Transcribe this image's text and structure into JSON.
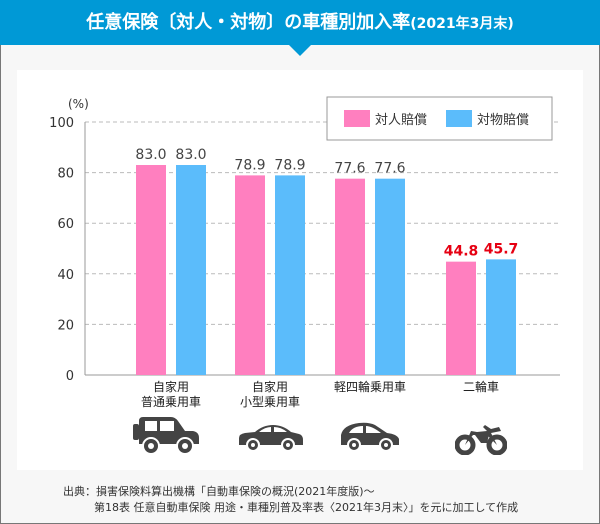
{
  "title": {
    "main": "任意保険〔対人・対物〕の車種別加入率",
    "sub": "(2021年3月末)"
  },
  "chart_data": {
    "type": "bar",
    "ylabel": "(%)",
    "ylim": [
      0,
      100
    ],
    "yticks": [
      "0",
      "20",
      "40",
      "60",
      "80",
      "100"
    ],
    "grid": true,
    "legend_position": "top-right",
    "categories": [
      "自家用\n普通乗用車",
      "自家用\n小型乗用車",
      "軽四輪乗用車",
      "二輪車"
    ],
    "series": [
      {
        "name": "対人賠償",
        "color": "#ff7fbf",
        "values": [
          83.0,
          78.9,
          77.6,
          44.8
        ],
        "labels": [
          "83.0",
          "78.9",
          "77.6",
          "44.8"
        ]
      },
      {
        "name": "対物賠償",
        "color": "#5bbcfb",
        "values": [
          83.0,
          78.9,
          77.6,
          45.7
        ],
        "labels": [
          "83.0",
          "78.9",
          "77.6",
          "45.7"
        ]
      }
    ],
    "highlight_color": "#e60012",
    "highlighted_category": "二輪車"
  },
  "icons": [
    "suv-icon",
    "sedan-icon",
    "compact-car-icon",
    "motorcycle-icon"
  ],
  "source": {
    "line1": "出典：損害保険料算出機構「自動車保険の概況(2021年度版)～",
    "line2": "第18表 任意自動車保険 用途・車種別普及率表〈2021年3月末〉」を元に加工して作成"
  }
}
